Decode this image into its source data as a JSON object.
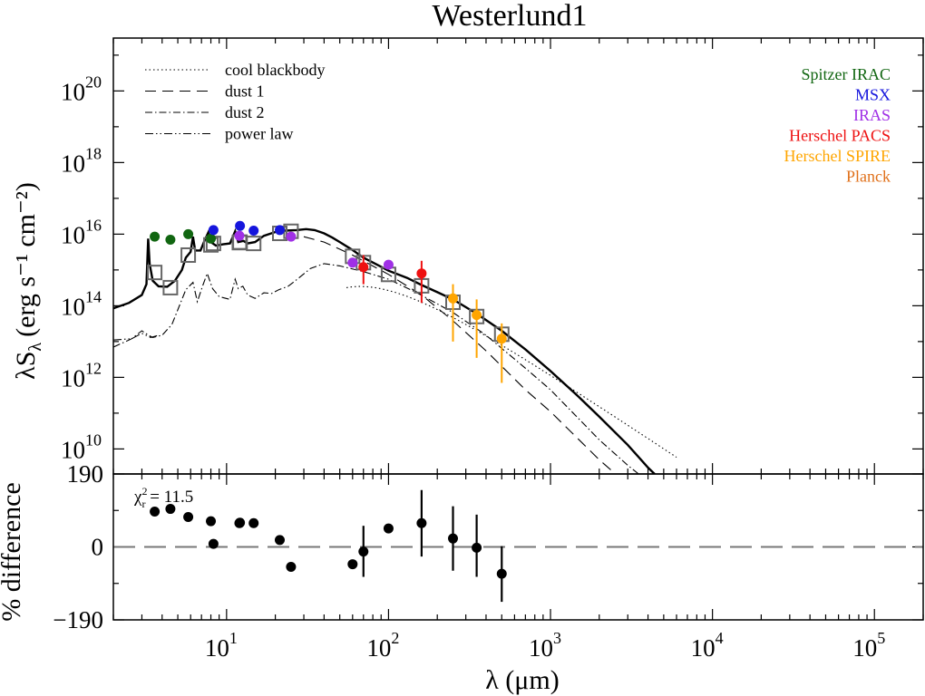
{
  "chart_data": [
    {
      "type": "scatter",
      "panel": "spectral energy distribution",
      "title": "Westerlund1",
      "xlabel": "λ (μm)",
      "ylabel_main": "λS",
      "ylabel_sub": "λ",
      "ylabel_units": "(erg s⁻¹ cm⁻²)",
      "xscale": "log",
      "yscale": "log",
      "xlim": [
        2,
        200000
      ],
      "ylim": [
        2000000000.0,
        3e+21
      ],
      "x_ticks": [
        {
          "value": 10,
          "base": "10",
          "exp": "1"
        },
        {
          "value": 100,
          "base": "10",
          "exp": "2"
        },
        {
          "value": 1000,
          "base": "10",
          "exp": "3"
        },
        {
          "value": 10000,
          "base": "10",
          "exp": "4"
        },
        {
          "value": 100000,
          "base": "10",
          "exp": "5"
        }
      ],
      "y_ticks": [
        {
          "value": 10000000000.0,
          "base": "10",
          "exp": "10"
        },
        {
          "value": 1000000000000.0,
          "base": "10",
          "exp": "12"
        },
        {
          "value": 100000000000000.0,
          "base": "10",
          "exp": "14"
        },
        {
          "value": 1e+16,
          "base": "10",
          "exp": "16"
        },
        {
          "value": 1e+18,
          "base": "10",
          "exp": "18"
        },
        {
          "value": 1e+20,
          "base": "10",
          "exp": "20"
        }
      ],
      "line_legend": {
        "placement": "top-left",
        "entries": [
          {
            "label": "cool blackbody",
            "style": "dotted"
          },
          {
            "label": "dust 1",
            "style": "dashed"
          },
          {
            "label": "dust 2",
            "style": "dashdot"
          },
          {
            "label": "power law",
            "style": "dashdotdot"
          }
        ]
      },
      "instrument_legend": {
        "placement": "top-right",
        "entries": [
          {
            "label": "Spitzer IRAC",
            "color": "#116611"
          },
          {
            "label": "MSX",
            "color": "#1515dd"
          },
          {
            "label": "IRAS",
            "color": "#a030e6"
          },
          {
            "label": "Herschel PACS",
            "color": "#ee1111"
          },
          {
            "label": "Herschel SPIRE",
            "color": "#ffa500"
          },
          {
            "label": "Planck",
            "color": "#e0701a"
          }
        ]
      },
      "series": [
        {
          "name": "Spitzer IRAC",
          "color": "#116611",
          "points": [
            {
              "x": 3.6,
              "y": 8500000000000000.0
            },
            {
              "x": 4.5,
              "y": 7000000000000000.0
            },
            {
              "x": 5.8,
              "y": 1e+16
            },
            {
              "x": 8.0,
              "y": 7500000000000000.0
            }
          ]
        },
        {
          "name": "MSX",
          "color": "#1515dd",
          "points": [
            {
              "x": 8.3,
              "y": 1.3e+16
            },
            {
              "x": 12.1,
              "y": 1.7e+16
            },
            {
              "x": 14.7,
              "y": 1.25e+16
            },
            {
              "x": 21.3,
              "y": 1.3e+16
            }
          ]
        },
        {
          "name": "IRAS",
          "color": "#a030e6",
          "points": [
            {
              "x": 12,
              "y": 9000000000000000.0
            },
            {
              "x": 25,
              "y": 8500000000000000.0
            },
            {
              "x": 60,
              "y": 1600000000000000.0
            },
            {
              "x": 100,
              "y": 1400000000000000.0
            }
          ]
        },
        {
          "name": "Herschel PACS",
          "color": "#ee1111",
          "points": [
            {
              "x": 70,
              "y": 1200000000000000.0,
              "ylow": 400000000000000.0,
              "yhigh": 2600000000000000.0
            },
            {
              "x": 160,
              "y": 800000000000000.0,
              "ylow": 120000000000000.0,
              "yhigh": 1800000000000000.0
            }
          ]
        },
        {
          "name": "Herschel SPIRE",
          "color": "#ffa500",
          "points": [
            {
              "x": 250,
              "y": 160000000000000.0,
              "ylow": 10000000000000.0,
              "yhigh": 400000000000000.0
            },
            {
              "x": 350,
              "y": 55000000000000.0,
              "ylow": 3500000000000.0,
              "yhigh": 150000000000000.0
            },
            {
              "x": 500,
              "y": 12000000000000.0,
              "ylow": 700000000000.0,
              "yhigh": 32000000000000.0
            }
          ]
        }
      ],
      "model_photometry": {
        "marker": "open-square",
        "points": [
          {
            "x": 3.6,
            "y": 850000000000000.0
          },
          {
            "x": 4.5,
            "y": 320000000000000.0
          },
          {
            "x": 5.8,
            "y": 2600000000000000.0
          },
          {
            "x": 8.0,
            "y": 5000000000000000.0
          },
          {
            "x": 8.3,
            "y": 5500000000000000.0
          },
          {
            "x": 12,
            "y": 5800000000000000.0
          },
          {
            "x": 12.1,
            "y": 6000000000000000.0
          },
          {
            "x": 14.7,
            "y": 5500000000000000.0
          },
          {
            "x": 21.3,
            "y": 1.05e+16
          },
          {
            "x": 25,
            "y": 1.2e+16
          },
          {
            "x": 60,
            "y": 2400000000000000.0
          },
          {
            "x": 70,
            "y": 1600000000000000.0
          },
          {
            "x": 100,
            "y": 750000000000000.0
          },
          {
            "x": 160,
            "y": 360000000000000.0
          },
          {
            "x": 250,
            "y": 125000000000000.0
          },
          {
            "x": 350,
            "y": 50000000000000.0
          },
          {
            "x": 500,
            "y": 16000000000000.0
          }
        ]
      }
    },
    {
      "type": "scatter",
      "panel": "residuals",
      "ylabel": "% difference",
      "xscale": "log",
      "xlim": [
        2,
        200000
      ],
      "ylim": [
        -190,
        190
      ],
      "y_ticks": [
        {
          "value": 190,
          "label": "190"
        },
        {
          "value": 0,
          "label": "0"
        },
        {
          "value": -190,
          "label": "−190"
        }
      ],
      "reference_line": {
        "y": 0,
        "style": "long-dash"
      },
      "annotation": {
        "symbol": "χ",
        "sup": "2",
        "sub": "r",
        "text": " = 11.5"
      },
      "points": [
        {
          "x": 3.6,
          "y": 92
        },
        {
          "x": 4.5,
          "y": 99
        },
        {
          "x": 5.8,
          "y": 78
        },
        {
          "x": 8.0,
          "y": 67
        },
        {
          "x": 8.3,
          "y": 8
        },
        {
          "x": 12,
          "y": 62
        },
        {
          "x": 12.1,
          "y": 63
        },
        {
          "x": 14.7,
          "y": 62
        },
        {
          "x": 21.3,
          "y": 18
        },
        {
          "x": 25,
          "y": -52
        },
        {
          "x": 60,
          "y": -45
        },
        {
          "x": 70,
          "y": -12,
          "ylow": -78,
          "yhigh": 55
        },
        {
          "x": 100,
          "y": 48
        },
        {
          "x": 160,
          "y": 62,
          "ylow": -25,
          "yhigh": 148
        },
        {
          "x": 250,
          "y": 22,
          "ylow": -62,
          "yhigh": 106
        },
        {
          "x": 350,
          "y": -2,
          "ylow": -78,
          "yhigh": 84
        },
        {
          "x": 500,
          "y": -70,
          "ylow": -143,
          "yhigh": 2
        }
      ]
    }
  ]
}
